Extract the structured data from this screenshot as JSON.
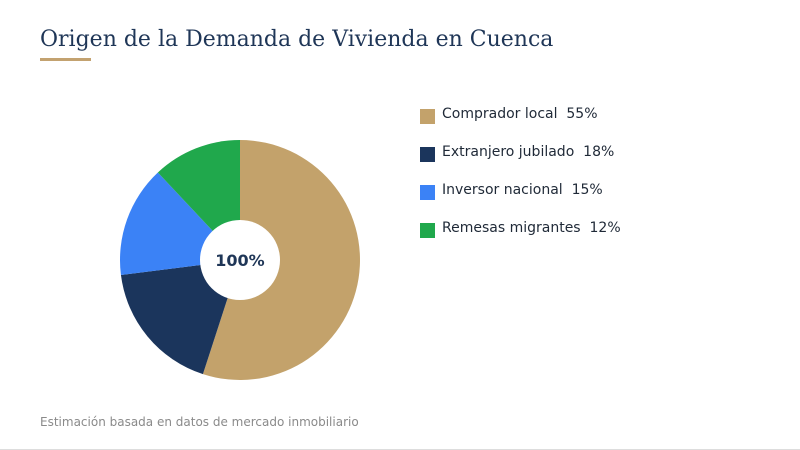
{
  "page": {
    "title": "Origen de la Demanda de Vivienda en Cuenca",
    "footer": "Estimación basada en datos de mercado inmobiliario",
    "accent_color": "#c3a270",
    "title_color": "#1f3657"
  },
  "chart_data": {
    "type": "pie",
    "variant": "donut",
    "center_label": "100%",
    "title": "Origen de la Demanda de Vivienda en Cuenca",
    "categories": [
      "Comprador local",
      "Extranjero jubilado",
      "Inversor nacional",
      "Remesas migrantes"
    ],
    "values": [
      55,
      18,
      15,
      12
    ],
    "unit": "%",
    "colors": [
      "#c3a26b",
      "#1b355c",
      "#3b82f6",
      "#20a84c"
    ],
    "legend_position": "right"
  },
  "legend": {
    "items": [
      {
        "label": "Comprador local  55%",
        "color": "#c3a26b"
      },
      {
        "label": "Extranjero jubilado  18%",
        "color": "#1b355c"
      },
      {
        "label": "Inversor nacional  15%",
        "color": "#3b82f6"
      },
      {
        "label": "Remesas migrantes  12%",
        "color": "#20a84c"
      }
    ]
  }
}
